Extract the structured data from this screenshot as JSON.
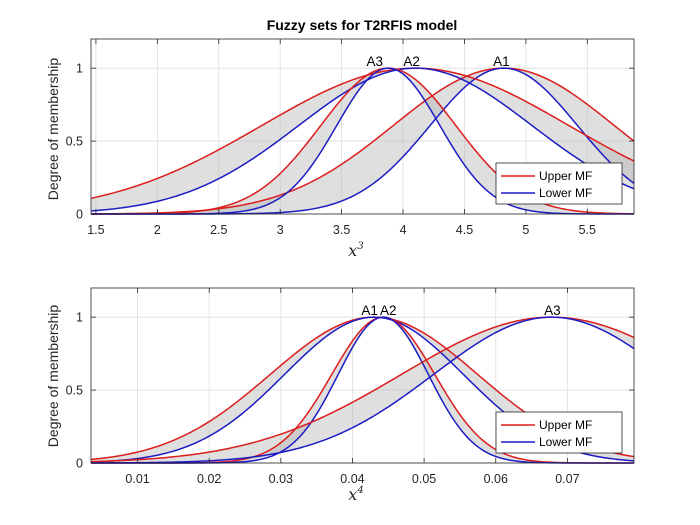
{
  "window": {
    "background": "#ffffff"
  },
  "colors": {
    "upper": "#dd1c1c",
    "lower": "#1c1cc4",
    "band": "#b3b3b3",
    "grid": "#dedede",
    "axis": "#262626"
  },
  "chart_data": [
    {
      "type": "line",
      "title": "Fuzzy sets for T2RFIS model",
      "xlabel": "x",
      "xlabel_sup": "3",
      "ylabel": "Degree of membership",
      "xlim": [
        1.46,
        5.88
      ],
      "ylim": [
        0,
        1.2
      ],
      "grid": true,
      "xticks": [
        1.5,
        2,
        2.5,
        3,
        3.5,
        4,
        4.5,
        5,
        5.5
      ],
      "xtick_labels": [
        "1.5",
        "2",
        "2.5",
        "3",
        "3.5",
        "4",
        "4.5",
        "5",
        "5.5"
      ],
      "yticks": [
        0,
        0.5,
        1
      ],
      "ytick_labels": [
        "0",
        "0.5",
        "1"
      ],
      "legend": {
        "position": "bottom-right",
        "entries": [
          "Upper MF",
          "Lower MF"
        ]
      },
      "sets": [
        {
          "name": "A1",
          "center": 4.82,
          "sigma_upper": 0.9,
          "sigma_lower": 0.6,
          "label_x": 4.8
        },
        {
          "name": "A2",
          "center": 4.1,
          "sigma_upper": 1.25,
          "sigma_lower": 0.95,
          "label_x": 4.07
        },
        {
          "name": "A3",
          "center": 3.88,
          "sigma_upper": 0.55,
          "sigma_lower": 0.42,
          "label_x": 3.77
        }
      ]
    },
    {
      "type": "line",
      "title": "",
      "xlabel": "x",
      "xlabel_sup": "4",
      "ylabel": "Degree of membership",
      "xlim": [
        0.0035,
        0.0793
      ],
      "ylim": [
        0,
        1.2
      ],
      "grid": true,
      "xticks": [
        0.01,
        0.02,
        0.03,
        0.04,
        0.05,
        0.06,
        0.07
      ],
      "xtick_labels": [
        "0.01",
        "0.02",
        "0.03",
        "0.04",
        "0.05",
        "0.06",
        "0.07"
      ],
      "yticks": [
        0,
        0.5,
        1
      ],
      "ytick_labels": [
        "0",
        "0.5",
        "1"
      ],
      "legend": {
        "position": "bottom-right",
        "entries": [
          "Upper MF",
          "Lower MF"
        ]
      },
      "sets": [
        {
          "name": "A1",
          "center": 0.043,
          "sigma_upper": 0.0145,
          "sigma_lower": 0.0125,
          "label_x": 0.0424
        },
        {
          "name": "A2",
          "center": 0.0443,
          "sigma_upper": 0.0072,
          "sigma_lower": 0.0063,
          "label_x": 0.045
        },
        {
          "name": "A3",
          "center": 0.0678,
          "sigma_upper": 0.021,
          "sigma_lower": 0.0165,
          "label_x": 0.0679
        }
      ]
    }
  ]
}
